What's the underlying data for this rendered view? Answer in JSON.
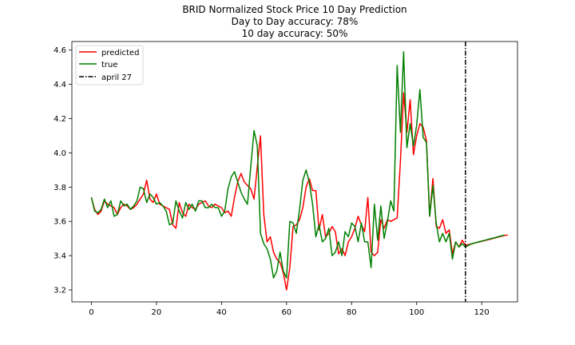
{
  "chart_data": {
    "type": "line",
    "title_lines": [
      "BRID Normalized Stock Price 10 Day Prediction",
      "Day to Day accuracy: 78%",
      "10 day accuracy: 50%"
    ],
    "xlabel": "",
    "ylabel": "",
    "xlim": [
      -6,
      131
    ],
    "ylim": [
      3.13,
      4.65
    ],
    "x_ticks": [
      0,
      20,
      40,
      60,
      80,
      100,
      120
    ],
    "y_ticks": [
      3.2,
      3.4,
      3.6,
      3.8,
      4.0,
      4.2,
      4.4,
      4.6
    ],
    "grid": false,
    "legend_position": "top-left",
    "series": [
      {
        "name": "predicted",
        "color": "#ff0000",
        "style": "solid",
        "x_start": 0,
        "values": [
          3.74,
          3.67,
          3.64,
          3.66,
          3.72,
          3.7,
          3.69,
          3.68,
          3.64,
          3.68,
          3.7,
          3.69,
          3.67,
          3.68,
          3.7,
          3.73,
          3.76,
          3.84,
          3.73,
          3.71,
          3.76,
          3.7,
          3.69,
          3.68,
          3.67,
          3.58,
          3.56,
          3.71,
          3.65,
          3.63,
          3.7,
          3.68,
          3.67,
          3.7,
          3.71,
          3.72,
          3.69,
          3.68,
          3.7,
          3.69,
          3.68,
          3.65,
          3.66,
          3.63,
          3.74,
          3.83,
          3.88,
          3.83,
          3.81,
          3.79,
          3.73,
          3.92,
          4.1,
          3.64,
          3.48,
          3.51,
          3.42,
          3.38,
          3.36,
          3.3,
          3.2,
          3.33,
          3.57,
          3.58,
          3.61,
          3.68,
          3.8,
          3.85,
          3.78,
          3.78,
          3.55,
          3.64,
          3.51,
          3.53,
          3.57,
          3.54,
          3.41,
          3.44,
          3.4,
          3.48,
          3.51,
          3.56,
          3.63,
          3.58,
          3.54,
          3.74,
          3.42,
          3.4,
          3.42,
          3.61,
          3.56,
          3.61,
          3.6,
          3.61,
          3.62,
          3.95,
          4.35,
          4.12,
          4.31,
          3.99,
          4.1,
          4.17,
          4.15,
          4.07,
          3.63,
          3.85,
          3.57,
          3.56,
          3.61,
          3.53,
          3.55,
          3.41,
          3.48,
          3.45,
          3.49,
          3.46
        ],
        "forecast": {
          "x_start": 115,
          "values": [
            3.46,
            3.465,
            3.47,
            3.475,
            3.479,
            3.483,
            3.488,
            3.493,
            3.498,
            3.503,
            3.508,
            3.513,
            3.518,
            3.52
          ]
        }
      },
      {
        "name": "true",
        "color": "#008000",
        "style": "solid",
        "x_start": 0,
        "values": [
          3.74,
          3.66,
          3.65,
          3.67,
          3.73,
          3.68,
          3.72,
          3.63,
          3.64,
          3.72,
          3.69,
          3.7,
          3.67,
          3.69,
          3.72,
          3.8,
          3.79,
          3.71,
          3.76,
          3.74,
          3.7,
          3.71,
          3.69,
          3.66,
          3.58,
          3.59,
          3.72,
          3.66,
          3.62,
          3.71,
          3.67,
          3.7,
          3.66,
          3.72,
          3.72,
          3.68,
          3.68,
          3.7,
          3.68,
          3.68,
          3.63,
          3.66,
          3.79,
          3.86,
          3.89,
          3.83,
          3.77,
          3.73,
          3.7,
          3.92,
          4.13,
          4.04,
          3.53,
          3.47,
          3.44,
          3.38,
          3.27,
          3.31,
          3.42,
          3.31,
          3.27,
          3.6,
          3.59,
          3.53,
          3.67,
          3.84,
          3.9,
          3.83,
          3.7,
          3.51,
          3.58,
          3.48,
          3.5,
          3.56,
          3.4,
          3.42,
          3.48,
          3.4,
          3.54,
          3.51,
          3.59,
          3.57,
          3.48,
          3.59,
          3.48,
          3.48,
          3.33,
          3.7,
          3.49,
          3.69,
          3.5,
          3.6,
          3.72,
          3.66,
          4.51,
          4.12,
          4.59,
          4.03,
          4.17,
          4.04,
          4.16,
          4.37,
          4.09,
          4.06,
          3.63,
          3.81,
          3.59,
          3.48,
          3.53,
          3.48,
          3.53,
          3.38,
          3.48,
          3.45,
          3.47,
          3.45
        ],
        "forecast": {
          "x_start": 115,
          "values": [
            3.45,
            3.46,
            3.47,
            3.475,
            3.48,
            3.485,
            3.49,
            3.495,
            3.5,
            3.505,
            3.51,
            3.515,
            3.52
          ]
        }
      }
    ],
    "vline": {
      "name": "april 27",
      "x": 115,
      "color": "#000000",
      "style": "dashdot"
    }
  }
}
